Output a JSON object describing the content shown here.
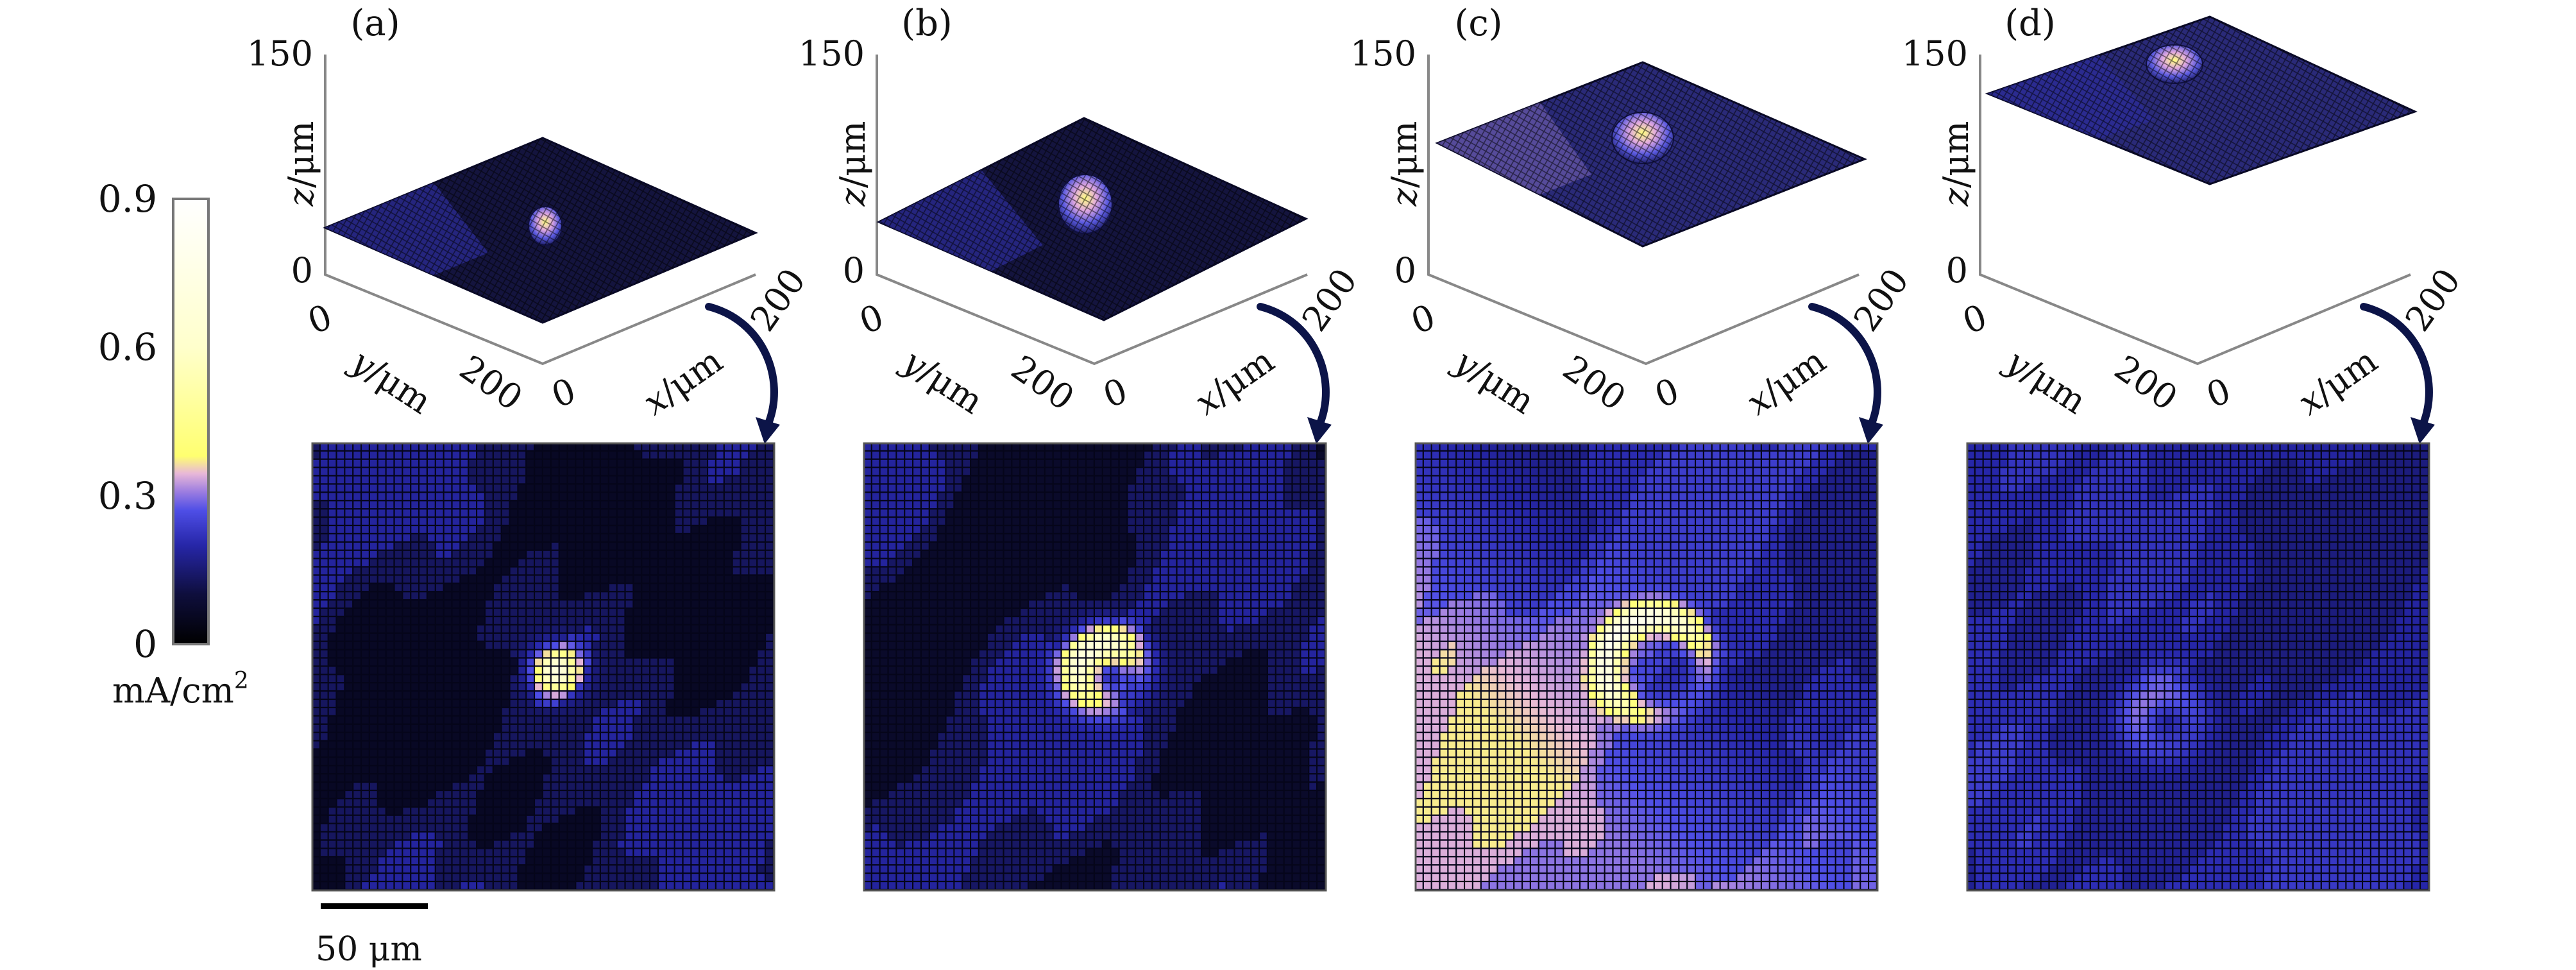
{
  "chart_data": {
    "type": "heatmap",
    "title": "",
    "colorbar": {
      "min": 0,
      "max": 0.9,
      "ticks": [
        "0.9",
        "0.6",
        "0.3",
        "0"
      ],
      "unit_label": "mA/cm",
      "unit_sup": "2",
      "stops": [
        [
          0,
          "#000000"
        ],
        [
          0.1,
          "#0e0e3c"
        ],
        [
          0.2,
          "#2626a8"
        ],
        [
          0.27,
          "#4e4ee6"
        ],
        [
          0.31,
          "#a080e0"
        ],
        [
          0.345,
          "#e8b8d8"
        ],
        [
          0.38,
          "#ffff70"
        ],
        [
          0.6,
          "#ffffcc"
        ],
        [
          0.9,
          "#ffffff"
        ]
      ]
    },
    "axes3d": {
      "z_ticks": [
        "150",
        "0"
      ],
      "y_ticks": [
        "0",
        "200"
      ],
      "x_ticks": [
        "0",
        "200"
      ],
      "z_label": "z",
      "y_label": "y",
      "x_label": "x",
      "unit": "/μm",
      "xlim": [
        0,
        200
      ],
      "ylim": [
        0,
        200
      ],
      "zlim": [
        0,
        150
      ]
    },
    "scale_bar": {
      "label": "50 μm",
      "length_um": 50
    },
    "grid": {
      "cols": 56,
      "rows": 54,
      "extent_um": 200
    },
    "panels": [
      {
        "label": "(a)",
        "base": 0.06,
        "patch": 0.13,
        "band": 0,
        "hotspots": [
          {
            "x": 106,
            "y": 102,
            "radius": 0,
            "width": 7,
            "peak": 0.5,
            "crescent": 0
          }
        ]
      },
      {
        "label": "(b)",
        "base": 0.07,
        "patch": 0.12,
        "band": 0,
        "hotspots": [
          {
            "x": 106,
            "y": 103,
            "radius": 13,
            "width": 6,
            "peak": 0.5,
            "crescent": 0.8
          }
        ]
      },
      {
        "label": "(c)",
        "base": 0.17,
        "patch": 0.07,
        "band": 0.13,
        "hotspots": [
          {
            "x": 104,
            "y": 100,
            "radius": 22,
            "width": 4.5,
            "peak": 0.55,
            "crescent": 0.9
          }
        ]
      },
      {
        "label": "(d)",
        "base": 0.16,
        "patch": 0.06,
        "band": 0.02,
        "hotspots": [
          {
            "x": 86,
            "y": 124,
            "radius": 12,
            "width": 7,
            "peak": 0.13,
            "crescent": 0.5
          }
        ]
      }
    ]
  }
}
